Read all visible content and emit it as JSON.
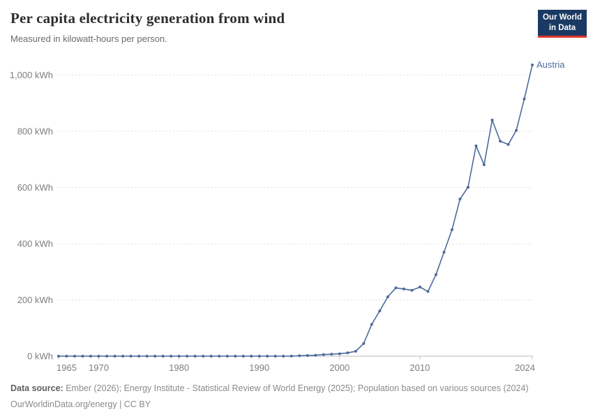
{
  "header": {
    "title": "Per capita electricity generation from wind",
    "subtitle": "Measured in kilowatt-hours per person.",
    "logo": {
      "line1": "Our World",
      "line2": "in Data"
    }
  },
  "footer": {
    "source_label": "Data source:",
    "source_text": " Ember (2026); Energy Institute - Statistical Review of World Energy (2025); Population based on various sources (2024)",
    "license_line": "OurWorldinData.org/energy | CC BY"
  },
  "colors": {
    "line": "#4c6a9c",
    "entity_label": "#4c6a9c",
    "grid": "#dedede",
    "axis": "#b8b8b8",
    "tick": "#c2c2c2",
    "tick_text": "#7d7d7d",
    "logo_bg": "#1a3a63",
    "logo_red": "#dc352b"
  },
  "chart_data": {
    "type": "line",
    "title": "Per capita electricity generation from wind",
    "subtitle": "Measured in kilowatt-hours per person.",
    "unit": "kWh",
    "entity_label": "Austria",
    "x": [
      1965,
      1966,
      1967,
      1968,
      1969,
      1970,
      1971,
      1972,
      1973,
      1974,
      1975,
      1976,
      1977,
      1978,
      1979,
      1980,
      1981,
      1982,
      1983,
      1984,
      1985,
      1986,
      1987,
      1988,
      1989,
      1990,
      1991,
      1992,
      1993,
      1994,
      1995,
      1996,
      1997,
      1998,
      1999,
      2000,
      2001,
      2002,
      2003,
      2004,
      2005,
      2006,
      2007,
      2008,
      2009,
      2010,
      2011,
      2012,
      2013,
      2014,
      2015,
      2016,
      2017,
      2018,
      2019,
      2020,
      2021,
      2022,
      2023,
      2024
    ],
    "series": [
      {
        "name": "Austria",
        "values": [
          0,
          0,
          0,
          0,
          0,
          0,
          0,
          0,
          0,
          0,
          0,
          0,
          0,
          0,
          0,
          0,
          0,
          0,
          0,
          0,
          0,
          0,
          0,
          0,
          0,
          0,
          0,
          0,
          0,
          0.3,
          1.4,
          2.3,
          3.3,
          5.6,
          6.9,
          8.4,
          11.7,
          17.3,
          45,
          113,
          161,
          211,
          243,
          239,
          234,
          246,
          230,
          290,
          370,
          450,
          559,
          601,
          748,
          681,
          840,
          765,
          753,
          803,
          915,
          1036
        ]
      }
    ],
    "y_ticks": [
      {
        "value": 0,
        "label": "0 kWh"
      },
      {
        "value": 200,
        "label": "200 kWh"
      },
      {
        "value": 400,
        "label": "400 kWh"
      },
      {
        "value": 600,
        "label": "600 kWh"
      },
      {
        "value": 800,
        "label": "800 kWh"
      },
      {
        "value": 1000,
        "label": "1,000 kWh"
      }
    ],
    "x_ticks": [
      {
        "value": 1965,
        "label": "1965"
      },
      {
        "value": 1970,
        "label": "1970"
      },
      {
        "value": 1980,
        "label": "1980"
      },
      {
        "value": 1990,
        "label": "1990"
      },
      {
        "value": 2000,
        "label": "2000"
      },
      {
        "value": 2010,
        "label": "2010"
      },
      {
        "value": 2024,
        "label": "2024"
      }
    ],
    "xlim": [
      1965,
      2024
    ],
    "ylim": [
      0,
      1050
    ],
    "grid": "horizontal-dashed",
    "legend_position": "end-of-line-label"
  }
}
